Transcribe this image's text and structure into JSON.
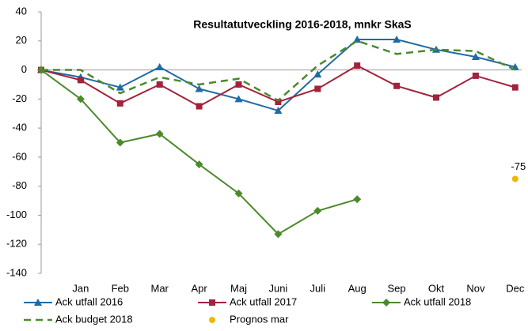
{
  "chart_data": {
    "type": "line",
    "title": "Resultatutveckling 2016-2018, mnkr SkaS",
    "categories": [
      null,
      "Jan",
      "Feb",
      "Mar",
      "Apr",
      "Maj",
      "Juni",
      "Juli",
      "Aug",
      "Sep",
      "Okt",
      "Nov",
      "Dec"
    ],
    "series": [
      {
        "name": "Ack utfall 2016",
        "color": "#1f6ba5",
        "marker": "triangle",
        "values": [
          0,
          -5,
          -12,
          2,
          -13,
          -20,
          -28,
          -3,
          21,
          21,
          14,
          9,
          2
        ]
      },
      {
        "name": "Ack utfall 2017",
        "color": "#a3223c",
        "marker": "square",
        "values": [
          0,
          -7,
          -23,
          -10,
          -25,
          -10,
          -22,
          -13,
          3,
          -11,
          -19,
          -4,
          -12
        ]
      },
      {
        "name": "Ack utfall 2018",
        "color": "#4b8a2c",
        "marker": "diamond",
        "values": [
          0,
          -20,
          -50,
          -44,
          -65,
          -85,
          -113,
          -97,
          -89,
          null,
          null,
          null,
          null
        ]
      },
      {
        "name": "Ack budget 2018",
        "color": "#4b8a2c",
        "dashed": true,
        "values": [
          0,
          0,
          -16,
          -5,
          -10,
          -6,
          -21,
          3,
          20,
          11,
          14,
          13,
          0
        ]
      },
      {
        "name": "Prognos mar",
        "color": "#f2b600",
        "marker": "circle",
        "data_labels": true,
        "values": [
          null,
          null,
          null,
          null,
          null,
          null,
          null,
          null,
          null,
          null,
          null,
          null,
          -75
        ]
      }
    ],
    "ylim": [
      -140,
      40
    ],
    "yticks": [
      -140,
      -120,
      -100,
      -80,
      -60,
      -40,
      -20,
      0,
      20,
      40
    ],
    "grid": false
  }
}
